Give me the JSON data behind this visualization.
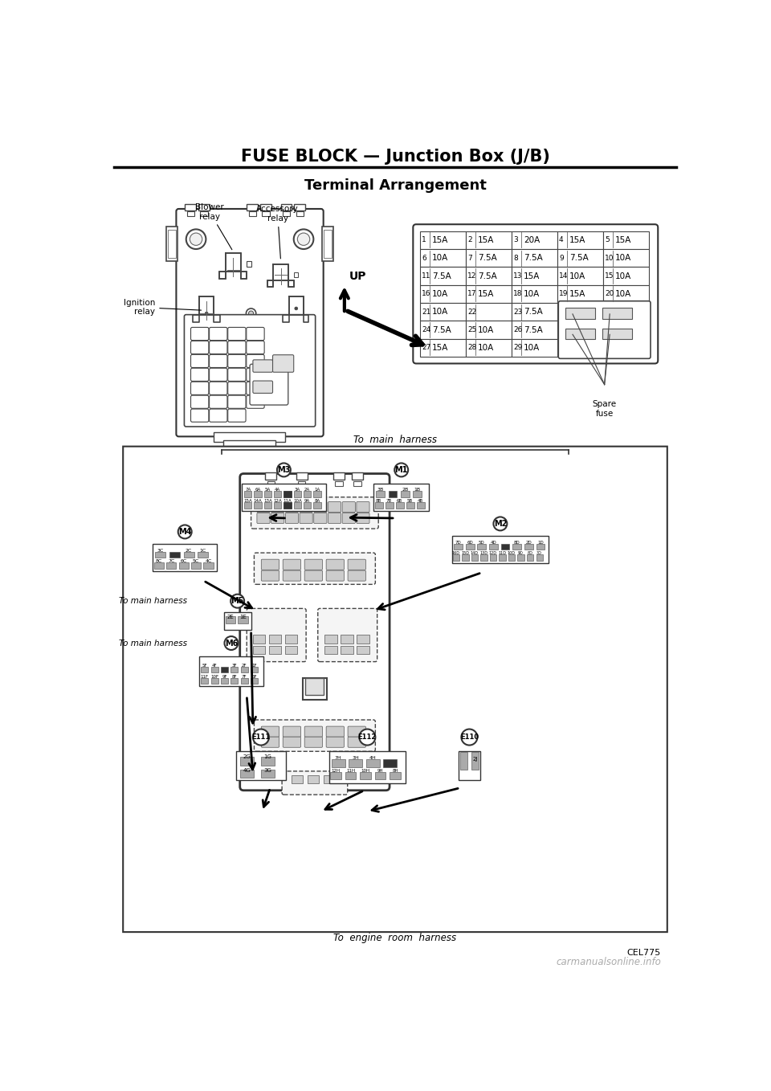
{
  "page_title": "FUSE BLOCK — Junction Box (J/B)",
  "section_title": "Terminal Arrangement",
  "watermark": "carmanualsonline.info",
  "cel_code": "CEL775",
  "bg_color": "#ffffff",
  "fuse_data": [
    [
      [
        "1",
        "15A"
      ],
      [
        "2",
        "15A"
      ],
      [
        "3",
        "20A"
      ],
      [
        "4",
        "15A"
      ],
      [
        "5",
        "15A"
      ]
    ],
    [
      [
        "6",
        "10A"
      ],
      [
        "7",
        "7.5A"
      ],
      [
        "8",
        "7.5A"
      ],
      [
        "9",
        "7.5A"
      ],
      [
        "10",
        "10A"
      ]
    ],
    [
      [
        "11",
        "7.5A"
      ],
      [
        "12",
        "7.5A"
      ],
      [
        "13",
        "15A"
      ],
      [
        "14",
        "10A"
      ],
      [
        "15",
        "10A"
      ]
    ],
    [
      [
        "16",
        "10A"
      ],
      [
        "17",
        "15A"
      ],
      [
        "18",
        "10A"
      ],
      [
        "19",
        "15A"
      ],
      [
        "20",
        "10A"
      ]
    ],
    [
      [
        "21",
        "10A"
      ],
      [
        "22",
        ""
      ],
      [
        "23",
        "7.5A"
      ],
      null,
      null
    ],
    [
      [
        "24",
        "7.5A"
      ],
      [
        "25",
        "10A"
      ],
      [
        "26",
        "7.5A"
      ],
      null,
      null
    ],
    [
      [
        "27",
        "15A"
      ],
      [
        "28",
        "10A"
      ],
      [
        "29",
        "10A"
      ],
      null,
      null
    ]
  ],
  "spare_fuse_label": "Spare\nfuse",
  "up_label": "UP",
  "to_main_harness": "To  main  harness",
  "to_engine_harness": "To  engine  room  harness",
  "to_main_m5": "To main harness",
  "to_main_m6": "To main harness"
}
